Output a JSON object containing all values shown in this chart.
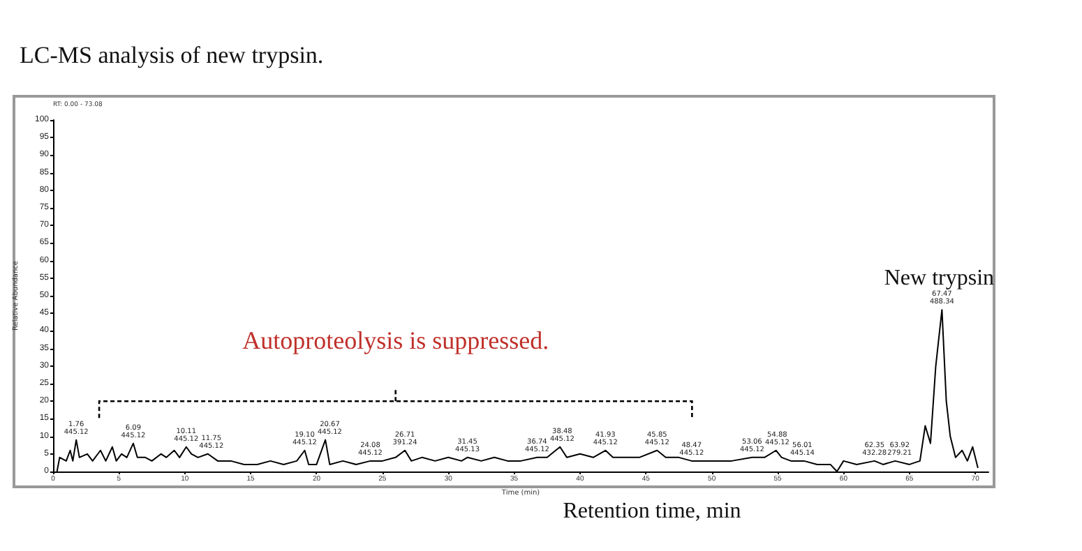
{
  "chart_data": {
    "type": "line",
    "title": "LC-MS analysis of new trypsin.",
    "xlabel": "Time (min)",
    "ylabel": "Relative Abundance",
    "color": "#000000",
    "x": [
      0.3,
      0.5,
      1.0,
      1.3,
      1.5,
      1.76,
      2.0,
      2.6,
      3.0,
      3.6,
      4.0,
      4.5,
      4.8,
      5.2,
      5.6,
      6.09,
      6.4,
      7.0,
      7.5,
      8.2,
      8.6,
      9.2,
      9.6,
      10.11,
      10.5,
      11.0,
      11.75,
      12.5,
      13.5,
      14.5,
      15.5,
      16.5,
      17.5,
      18.5,
      19.1,
      19.4,
      20.0,
      20.67,
      21.0,
      22.0,
      23.0,
      24.08,
      25.0,
      26.0,
      26.71,
      27.2,
      28.0,
      29.0,
      30.0,
      31.0,
      31.45,
      32.5,
      33.5,
      34.5,
      35.5,
      36.74,
      37.5,
      38.48,
      39.0,
      40.0,
      41.0,
      41.93,
      42.5,
      43.5,
      44.5,
      45.85,
      46.5,
      47.5,
      48.47,
      49.5,
      50.5,
      51.5,
      53.06,
      54.0,
      54.88,
      55.3,
      56.01,
      57.0,
      58.0,
      59.0,
      59.5,
      60.0,
      61.0,
      62.35,
      63.0,
      63.92,
      65.0,
      65.8,
      66.2,
      66.6,
      67.0,
      67.47,
      67.8,
      68.1,
      68.5,
      69.0,
      69.4,
      69.8,
      70.2
    ],
    "values": [
      0,
      4,
      3,
      6,
      3,
      9,
      4,
      5,
      3,
      6,
      3,
      7,
      3,
      5,
      4,
      8,
      4,
      4,
      3,
      5,
      4,
      6,
      4,
      7,
      5,
      4,
      5,
      3,
      3,
      2,
      2,
      3,
      2,
      3,
      6,
      2,
      2,
      9,
      2,
      3,
      2,
      3,
      3,
      4,
      6,
      3,
      4,
      3,
      4,
      3,
      4,
      3,
      4,
      3,
      3,
      4,
      4,
      7,
      4,
      5,
      4,
      6,
      4,
      4,
      4,
      6,
      4,
      4,
      3,
      3,
      3,
      3,
      4,
      4,
      6,
      4,
      3,
      3,
      2,
      2,
      0,
      3,
      2,
      3,
      2,
      3,
      2,
      3,
      13,
      8,
      30,
      46,
      20,
      10,
      4,
      6,
      3,
      7,
      1
    ],
    "xlim": [
      0,
      71
    ],
    "xticks": [
      0,
      5,
      10,
      15,
      20,
      25,
      30,
      35,
      40,
      45,
      50,
      55,
      60,
      65,
      70
    ],
    "ylim": [
      0,
      100
    ],
    "yticks": [
      0,
      5,
      10,
      15,
      20,
      25,
      30,
      35,
      40,
      45,
      50,
      55,
      60,
      65,
      70,
      75,
      80,
      85,
      90,
      95,
      100
    ],
    "annotations": [
      "RT: 0.00 - 73.08",
      "Autoproteolysis is suppressed.",
      "Retention time, min",
      {
        "text": "New trypsin",
        "x": 67.47,
        "y": 46
      },
      {
        "text": "67.47\n488.34",
        "x": 67.47,
        "y": 46
      },
      {
        "text": "1.76\n445.12",
        "x": 1.76,
        "y": 9
      },
      {
        "text": "6.09\n445.12",
        "x": 6.09,
        "y": 8
      },
      {
        "text": "10.11\n445.12",
        "x": 10.11,
        "y": 7
      },
      {
        "text": "11.75\n445.12",
        "x": 11.75,
        "y": 5
      },
      {
        "text": "19.10\n445.12",
        "x": 19.1,
        "y": 6
      },
      {
        "text": "20.67\n445.12",
        "x": 20.67,
        "y": 9
      },
      {
        "text": "24.08\n445.12",
        "x": 24.08,
        "y": 3
      },
      {
        "text": "26.71\n391.24",
        "x": 26.71,
        "y": 6
      },
      {
        "text": "31.45\n445.13",
        "x": 31.45,
        "y": 4
      },
      {
        "text": "36.74\n445.12",
        "x": 36.74,
        "y": 4
      },
      {
        "text": "38.48\n445.12",
        "x": 38.48,
        "y": 7
      },
      {
        "text": "41.93\n445.12",
        "x": 41.93,
        "y": 6
      },
      {
        "text": "45.85\n445.12",
        "x": 45.85,
        "y": 6
      },
      {
        "text": "48.47\n445.12",
        "x": 48.47,
        "y": 3
      },
      {
        "text": "53.06\n445.12",
        "x": 53.06,
        "y": 4
      },
      {
        "text": "54.88\n445.12",
        "x": 54.88,
        "y": 6
      },
      {
        "text": "56.01\n445.14",
        "x": 56.01,
        "y": 3
      },
      {
        "text": "62.35\n432.28",
        "x": 62.35,
        "y": 3
      },
      {
        "text": "63.92\n279.21",
        "x": 63.92,
        "y": 3
      }
    ]
  }
}
